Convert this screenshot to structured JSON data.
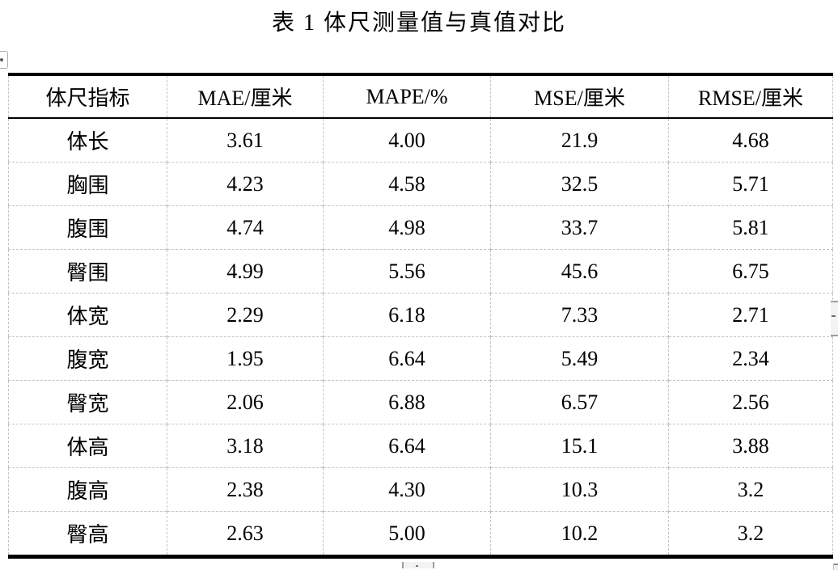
{
  "title": "表 1 体尺测量值与真值对比",
  "table": {
    "columns": [
      "体尺指标",
      "MAE/厘米",
      "MAPE/%",
      "MSE/厘米",
      "RMSE/厘米"
    ],
    "rows": [
      [
        "体长",
        "3.61",
        "4.00",
        "21.9",
        "4.68"
      ],
      [
        "胸围",
        "4.23",
        "4.58",
        "32.5",
        "5.71"
      ],
      [
        "腹围",
        "4.74",
        "4.98",
        "33.7",
        "5.81"
      ],
      [
        "臀围",
        "4.99",
        "5.56",
        "45.6",
        "6.75"
      ],
      [
        "体宽",
        "2.29",
        "6.18",
        "7.33",
        "2.71"
      ],
      [
        "腹宽",
        "1.95",
        "6.64",
        "5.49",
        "2.34"
      ],
      [
        "臀宽",
        "2.06",
        "6.88",
        "6.57",
        "2.56"
      ],
      [
        "体高",
        "3.18",
        "6.64",
        "15.1",
        "3.88"
      ],
      [
        "腹高",
        "2.38",
        "4.30",
        "10.3",
        "3.2"
      ],
      [
        "臀高",
        "2.63",
        "5.00",
        "10.2",
        "3.2"
      ]
    ]
  },
  "colors": {
    "text": "#000000",
    "solid_border": "#000000",
    "grid_dashed": "#c3c3c3",
    "scrollbar_fill": "#f3f3f3",
    "scrollbar_edge": "#9f9f9f"
  }
}
